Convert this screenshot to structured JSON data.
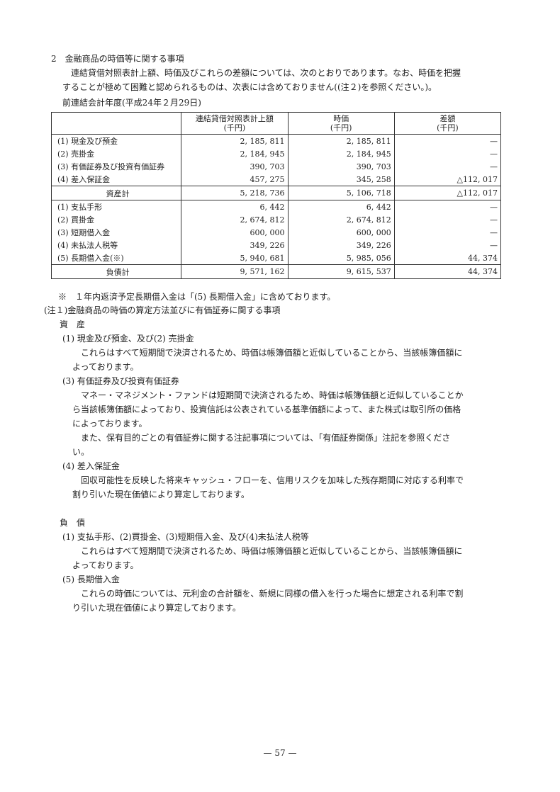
{
  "heading": "2　金融商品の時価等に関する事項",
  "intro_lines": [
    "連結貸借対照表計上額、時価及びこれらの差額については、次のとおりであります。なお、時価を把握",
    "することが極めて困難と認められるものは、次表には含めておりません((注２)を参照ください。)。"
  ],
  "period": "前連結会計年度(平成24年２月29日)",
  "table": {
    "headers": [
      {
        "line1": "",
        "line2": ""
      },
      {
        "line1": "連結貸借対照表計上額",
        "line2": "(千円)"
      },
      {
        "line1": "時価",
        "line2": "(千円)"
      },
      {
        "line1": "差額",
        "line2": "(千円)"
      }
    ],
    "assets": [
      [
        "(1)  現金及び預金",
        "2, 185, 811",
        "2, 185, 811",
        "—"
      ],
      [
        "(2)  売掛金",
        "2, 184, 945",
        "2, 184, 945",
        "—"
      ],
      [
        "(3)  有価証券及び投資有価証券",
        "390, 703",
        "390, 703",
        "—"
      ],
      [
        "(4)  差入保証金",
        "457, 275",
        "345, 258",
        "△112, 017"
      ]
    ],
    "assets_total": [
      "資産計",
      "5, 218, 736",
      "5, 106, 718",
      "△112, 017"
    ],
    "liabilities": [
      [
        "(1)  支払手形",
        "6, 442",
        "6, 442",
        "—"
      ],
      [
        "(2)  買掛金",
        "2, 674, 812",
        "2, 674, 812",
        "—"
      ],
      [
        "(3)  短期借入金",
        "600, 000",
        "600, 000",
        "—"
      ],
      [
        "(4)  未払法人税等",
        "349, 226",
        "349, 226",
        "—"
      ],
      [
        "(5)  長期借入金(※)",
        "5, 940, 681",
        "5, 985, 056",
        "44, 374"
      ]
    ],
    "liabilities_total": [
      "負債計",
      "9, 571, 162",
      "9, 615, 537",
      "44, 374"
    ]
  },
  "table_note": "※　１年内返済予定長期借入金は「(5) 長期借入金」に含めております。",
  "note1_title": "(注１)金融商品の時価の算定方法並びに有価証券に関する事項",
  "assets_heading": "資　産",
  "assets_items": {
    "a1_title": "(1)  現金及び預金、及び(2)  売掛金",
    "a1_lines": [
      "これらはすべて短期間で決済されるため、時価は帳簿価額と近似していることから、当該帳簿価額に",
      "よっております。"
    ],
    "a3_title": "(3)  有価証券及び投資有価証券",
    "a3_lines": [
      "マネー・マネジメント・ファンドは短期間で決済されるため、時価は帳簿価額と近似していることか",
      "ら当該帳簿価額によっており、投資信託は公表されている基準価額によって、また株式は取引所の価格",
      "によっております。"
    ],
    "a3b_lines": [
      "また、保有目的ごとの有価証券に関する注記事項については、「有価証券関係」注記を参照くださ",
      "い。"
    ],
    "a4_title": "(4)  差入保証金",
    "a4_lines": [
      "回収可能性を反映した将来キャッシュ・フローを、信用リスクを加味した残存期間に対応する利率で",
      "割り引いた現在価値により算定しております。"
    ]
  },
  "liabilities_heading": "負　債",
  "liabilities_items": {
    "l1_title": "(1)  支払手形、(2)買掛金、(3)短期借入金、及び(4)未払法人税等",
    "l1_lines": [
      "これらはすべて短期間で決済されるため、時価は帳簿価額と近似していることから、当該帳簿価額に",
      "よっております。"
    ],
    "l5_title": "(5)  長期借入金",
    "l5_lines": [
      "これらの時価については、元利金の合計額を、新規に同様の借入を行った場合に想定される利率で割",
      "り引いた現在価値により算定しております。"
    ]
  },
  "page_number": "— 57 —"
}
